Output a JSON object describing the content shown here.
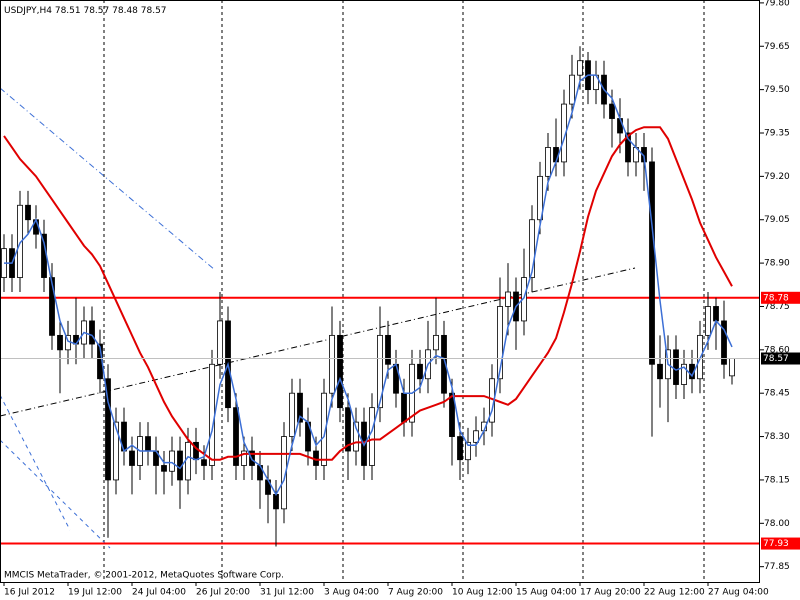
{
  "chart_data": {
    "type": "candlestick",
    "title": "USDJPY,H4",
    "watermark": "MMCIS MetaTrader, © 2001-2012, MetaQuotes Software Corp.",
    "categories": [
      "16 Jul 2012",
      null,
      null,
      null,
      null,
      null,
      null,
      null,
      "19 Jul 12:00",
      null,
      null,
      null,
      null,
      null,
      null,
      null,
      "24 Jul 04:00",
      null,
      null,
      null,
      null,
      null,
      null,
      null,
      "26 Jul 20:00",
      null,
      null,
      null,
      null,
      null,
      null,
      null,
      "31 Jul 12:00",
      null,
      null,
      null,
      null,
      null,
      null,
      null,
      "3 Aug 04:00",
      null,
      null,
      null,
      null,
      null,
      null,
      null,
      "7 Aug 20:00",
      null,
      null,
      null,
      null,
      null,
      null,
      null,
      "10 Aug 12:00",
      null,
      null,
      null,
      null,
      null,
      null,
      null,
      "15 Aug 04:00",
      null,
      null,
      null,
      null,
      null,
      null,
      null,
      "17 Aug 20:00",
      null,
      null,
      null,
      null,
      null,
      null,
      null,
      "22 Aug 12:00",
      null,
      null,
      null,
      null,
      null,
      null,
      null,
      "27 Aug 04:00",
      null,
      null,
      null
    ],
    "open": [
      78.85,
      78.95,
      78.85,
      79.1,
      79.05,
      79.0,
      78.85,
      78.65,
      78.6,
      78.65,
      78.62,
      78.7,
      78.62,
      78.5,
      78.15,
      78.35,
      78.25,
      78.2,
      78.3,
      78.25,
      78.2,
      78.18,
      78.25,
      78.15,
      78.28,
      78.22,
      78.2,
      78.55,
      78.7,
      78.4,
      78.2,
      78.25,
      78.2,
      78.15,
      78.1,
      78.05,
      78.3,
      78.45,
      78.35,
      78.25,
      78.2,
      78.45,
      78.65,
      78.4,
      78.25,
      78.35,
      78.2,
      78.4,
      78.65,
      78.55,
      78.45,
      78.35,
      78.55,
      78.5,
      78.6,
      78.65,
      78.45,
      78.3,
      78.22,
      78.28,
      78.32,
      78.35,
      78.5,
      78.75,
      78.8,
      78.7,
      78.85,
      79.05,
      79.2,
      79.3,
      79.25,
      79.45,
      79.55,
      79.6,
      79.5,
      79.55,
      79.45,
      79.4,
      79.35,
      79.25,
      79.3,
      79.25,
      78.55,
      78.5,
      78.6,
      78.48,
      78.55,
      78.5,
      78.65,
      78.75,
      78.7,
      78.51
    ],
    "high": [
      79.0,
      79.0,
      79.15,
      79.15,
      79.1,
      79.05,
      78.9,
      78.7,
      78.7,
      78.78,
      78.75,
      78.75,
      78.67,
      78.55,
      78.4,
      78.4,
      78.3,
      78.35,
      78.35,
      78.3,
      78.25,
      78.3,
      78.3,
      78.33,
      78.33,
      78.27,
      78.6,
      78.8,
      78.75,
      78.45,
      78.3,
      78.3,
      78.25,
      78.2,
      78.15,
      78.35,
      78.5,
      78.5,
      78.4,
      78.3,
      78.5,
      78.75,
      78.7,
      78.45,
      78.4,
      78.4,
      78.45,
      78.75,
      78.7,
      78.6,
      78.5,
      78.6,
      78.6,
      78.7,
      78.78,
      78.7,
      78.5,
      78.35,
      78.33,
      78.37,
      78.4,
      78.55,
      78.85,
      78.9,
      78.85,
      78.95,
      79.1,
      79.25,
      79.35,
      79.4,
      79.5,
      79.62,
      79.65,
      79.63,
      79.6,
      79.6,
      79.5,
      79.47,
      79.4,
      79.35,
      79.35,
      79.3,
      78.65,
      78.65,
      78.65,
      78.6,
      78.6,
      78.7,
      78.8,
      78.78,
      78.77,
      78.57
    ],
    "low": [
      78.8,
      78.8,
      78.8,
      79.0,
      78.95,
      78.8,
      78.6,
      78.45,
      78.55,
      78.55,
      78.57,
      78.57,
      78.45,
      77.95,
      78.1,
      78.2,
      78.1,
      78.15,
      78.2,
      78.1,
      78.1,
      78.13,
      78.05,
      78.1,
      78.17,
      78.15,
      78.15,
      78.5,
      78.35,
      78.15,
      78.15,
      78.15,
      78.05,
      78.0,
      77.92,
      78.0,
      78.25,
      78.3,
      78.2,
      78.15,
      78.15,
      78.4,
      78.35,
      78.15,
      78.2,
      78.15,
      78.15,
      78.35,
      78.5,
      78.4,
      78.3,
      78.3,
      78.45,
      78.45,
      78.55,
      78.4,
      78.2,
      78.15,
      78.17,
      78.23,
      78.27,
      78.3,
      78.45,
      78.65,
      78.6,
      78.65,
      78.8,
      79.0,
      79.15,
      79.2,
      79.2,
      79.4,
      79.5,
      79.45,
      79.45,
      79.4,
      79.3,
      79.28,
      79.2,
      79.2,
      79.15,
      78.3,
      78.4,
      78.35,
      78.43,
      78.43,
      78.45,
      78.45,
      78.6,
      78.6,
      78.5,
      78.48
    ],
    "close": [
      78.95,
      78.85,
      79.1,
      79.05,
      79.0,
      78.85,
      78.65,
      78.6,
      78.65,
      78.62,
      78.7,
      78.62,
      78.5,
      78.15,
      78.35,
      78.25,
      78.2,
      78.3,
      78.25,
      78.2,
      78.18,
      78.25,
      78.15,
      78.28,
      78.22,
      78.2,
      78.55,
      78.7,
      78.4,
      78.2,
      78.25,
      78.2,
      78.15,
      78.1,
      78.05,
      78.3,
      78.45,
      78.35,
      78.25,
      78.2,
      78.45,
      78.65,
      78.4,
      78.25,
      78.35,
      78.2,
      78.4,
      78.65,
      78.55,
      78.45,
      78.35,
      78.55,
      78.5,
      78.6,
      78.65,
      78.45,
      78.3,
      78.22,
      78.28,
      78.32,
      78.35,
      78.5,
      78.75,
      78.8,
      78.7,
      78.85,
      79.05,
      79.2,
      79.3,
      79.25,
      79.45,
      79.55,
      79.6,
      79.5,
      79.55,
      79.45,
      79.4,
      79.35,
      79.25,
      79.3,
      79.25,
      78.55,
      78.5,
      78.6,
      78.48,
      78.55,
      78.5,
      78.65,
      78.75,
      78.7,
      78.55,
      78.57
    ],
    "lines": [
      {
        "color": "#e00000",
        "values": [
          79.34,
          79.3,
          79.26,
          79.23,
          79.2,
          79.16,
          79.12,
          79.08,
          79.04,
          79.0,
          78.96,
          78.93,
          78.89,
          78.83,
          78.77,
          78.71,
          78.65,
          78.59,
          78.54,
          78.48,
          78.42,
          78.37,
          78.33,
          78.29,
          78.26,
          78.24,
          78.22,
          78.22,
          78.23,
          78.23,
          78.24,
          78.24,
          78.24,
          78.24,
          78.24,
          78.24,
          78.24,
          78.24,
          78.23,
          78.22,
          78.22,
          78.22,
          78.25,
          78.27,
          78.28,
          78.28,
          78.29,
          78.29,
          78.31,
          78.33,
          78.35,
          78.37,
          78.39,
          78.4,
          78.41,
          78.42,
          78.44,
          78.44,
          78.44,
          78.44,
          78.44,
          78.43,
          78.42,
          78.41,
          78.43,
          78.47,
          78.51,
          78.55,
          78.59,
          78.64,
          78.73,
          78.83,
          78.94,
          79.06,
          79.15,
          79.21,
          79.27,
          79.31,
          79.34,
          79.36,
          79.37,
          79.37,
          79.37,
          79.33,
          79.26,
          79.19,
          79.12,
          79.04,
          78.98,
          78.92,
          78.87,
          78.82
        ]
      },
      {
        "color": "#3c6fd6",
        "values": [
          78.9,
          78.9,
          78.97,
          79.0,
          79.05,
          78.97,
          78.83,
          78.7,
          78.63,
          78.62,
          78.66,
          78.65,
          78.61,
          78.42,
          78.33,
          78.25,
          78.27,
          78.25,
          78.25,
          78.25,
          78.21,
          78.21,
          78.19,
          78.23,
          78.22,
          78.23,
          78.32,
          78.48,
          78.55,
          78.43,
          78.28,
          78.22,
          78.2,
          78.15,
          78.1,
          78.15,
          78.27,
          78.37,
          78.35,
          78.27,
          78.3,
          78.43,
          78.5,
          78.43,
          78.33,
          78.27,
          78.32,
          78.42,
          78.53,
          78.55,
          78.45,
          78.45,
          78.47,
          78.55,
          78.58,
          78.57,
          78.47,
          78.32,
          78.27,
          78.27,
          78.32,
          78.39,
          78.53,
          78.68,
          78.75,
          78.78,
          78.87,
          79.03,
          79.18,
          79.25,
          79.33,
          79.42,
          79.53,
          79.55,
          79.55,
          79.5,
          79.47,
          79.4,
          79.33,
          79.3,
          79.27,
          79.03,
          78.77,
          78.55,
          78.53,
          78.54,
          78.51,
          78.57,
          78.63,
          78.7,
          78.67,
          78.61
        ]
      }
    ],
    "levels": [
      {
        "value": 78.78,
        "color": "#ff0000"
      },
      {
        "value": 77.93,
        "color": "#ff0000"
      }
    ],
    "ylim": [
      77.797,
      79.81
    ],
    "yticks": [
      {
        "value": 79.8,
        "label": "79.80"
      },
      79.65,
      {
        "value": 79.5,
        "label": "79.50"
      },
      79.35,
      {
        "value": 79.2,
        "label": "79.20"
      },
      79.05,
      {
        "value": 78.9,
        "label": "78.90"
      },
      78.75,
      {
        "value": 78.6,
        "label": "78.60"
      },
      78.45,
      {
        "value": 78.3,
        "label": "78.30"
      },
      78.15,
      {
        "value": 78.0,
        "label": "78.00"
      },
      77.85
    ],
    "grid": false,
    "up_color": "#ffffff",
    "down_color": "#000000"
  }
}
